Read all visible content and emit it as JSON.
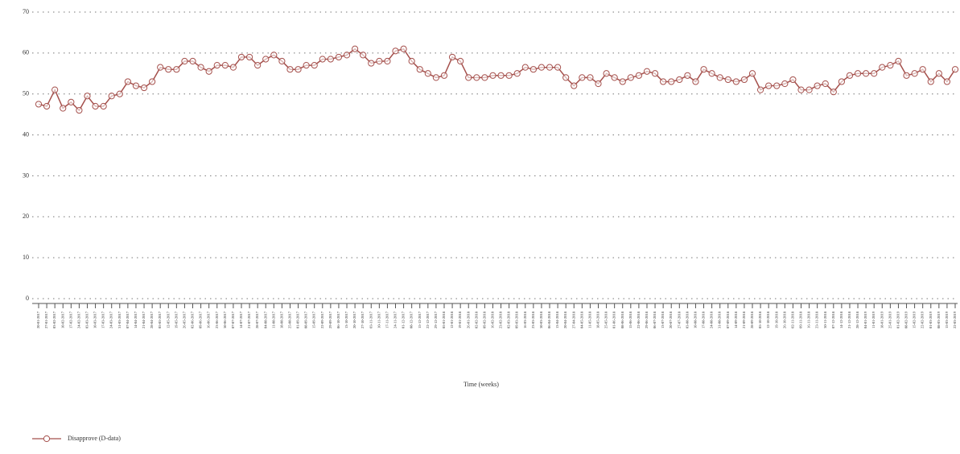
{
  "chart_data": {
    "type": "line",
    "x_label": "Time (weeks)",
    "categories": [
      "20-01-2017",
      "27-01-2017",
      "03-02-2017",
      "10-02-2017",
      "17-02-2017",
      "24-02-2017",
      "03-03-2017",
      "10-03-2017",
      "17-03-2017",
      "24-03-2017",
      "31-03-2017",
      "07-04-2017",
      "14-04-2017",
      "21-04-2017",
      "28-04-2017",
      "05-05-2017",
      "12-05-2017",
      "19-05-2017",
      "26-05-2017",
      "02-06-2017",
      "09-06-2017",
      "16-06-2017",
      "23-06-2017",
      "30-06-2017",
      "07-07-2017",
      "14-07-2017",
      "21-07-2017",
      "28-07-2017",
      "04-08-2017",
      "11-08-2017",
      "18-08-2017",
      "25-08-2017",
      "01-09-2017",
      "08-09-2017",
      "15-09-2017",
      "22-09-2017",
      "29-09-2017",
      "06-10-2017",
      "13-10-2017",
      "20-10-2017",
      "27-10-2017",
      "03-11-2017",
      "10-11-2017",
      "17-11-2017",
      "24-11-2017",
      "01-12-2017",
      "08-12-2017",
      "15-12-2017",
      "22-12-2017",
      "29-12-2017",
      "05-01-2018",
      "12-01-2018",
      "19-01-2018",
      "26-01-2018",
      "02-02-2018",
      "09-02-2018",
      "16-02-2018",
      "23-02-2018",
      "02-03-2018",
      "09-03-2018",
      "16-03-2018",
      "23-03-2018",
      "30-03-2018",
      "06-04-2018",
      "13-04-2018",
      "20-04-2018",
      "27-04-2018",
      "04-05-2018",
      "11-05-2018",
      "18-05-2018",
      "25-05-2018",
      "01-06-2018",
      "08-06-2018",
      "15-06-2018",
      "22-06-2018",
      "29-06-2018",
      "06-07-2018",
      "13-07-2018",
      "20-07-2018",
      "27-07-2018",
      "03-08-2018",
      "10-08-2018",
      "17-08-2018",
      "24-08-2018",
      "31-08-2018",
      "07-09-2018",
      "14-09-2018",
      "21-09-2018",
      "28-09-2018",
      "05-10-2018",
      "12-10-2018",
      "19-10-2018",
      "26-10-2018",
      "02-11-2018",
      "09-11-2018",
      "16-11-2018",
      "23-11-2018",
      "30-11-2018",
      "07-12-2018",
      "14-12-2018",
      "21-12-2018",
      "28-12-2018",
      "04-01-2019",
      "11-01-2019",
      "18-01-2019",
      "25-01-2019",
      "01-02-2019",
      "08-02-2019",
      "15-02-2019",
      "22-02-2019",
      "01-03-2019",
      "08-03-2019",
      "15-03-2019",
      "22-03-2019"
    ],
    "series": [
      {
        "name": "Disapprove (D-data)",
        "color": "#a5504c",
        "values": [
          47.5,
          47,
          51,
          46.5,
          48,
          46,
          49.5,
          47,
          47,
          49.5,
          50,
          53,
          52,
          51.5,
          53,
          56.5,
          56,
          56,
          58,
          58,
          56.5,
          55.5,
          57,
          57,
          56.5,
          59,
          59,
          57,
          58.5,
          59.5,
          58,
          56,
          56,
          57,
          57,
          58.5,
          58.5,
          59,
          59.5,
          61,
          59.5,
          57.5,
          58,
          58,
          60.5,
          61,
          58,
          56,
          55,
          54,
          54.5,
          59,
          58,
          54,
          54,
          54,
          54.5,
          54.5,
          54.5,
          55,
          56.5,
          56,
          56.5,
          56.5,
          56.5,
          54,
          52,
          54,
          54,
          52.5,
          55,
          54,
          53,
          54,
          54.5,
          55.5,
          55,
          53,
          53,
          53.5,
          54.5,
          53,
          56,
          55,
          54,
          53.5,
          53,
          53.5,
          55,
          51,
          52,
          52,
          52.5,
          53.5,
          51,
          51,
          52,
          52.5,
          50.5,
          53,
          54.5,
          55,
          55,
          55,
          56.5,
          57,
          58,
          54.5,
          55,
          56,
          53,
          55,
          53,
          56
        ]
      }
    ],
    "ylim": [
      0,
      70
    ],
    "yticks": [
      0,
      10,
      20,
      30,
      40,
      50,
      60,
      70
    ],
    "grid": true
  }
}
